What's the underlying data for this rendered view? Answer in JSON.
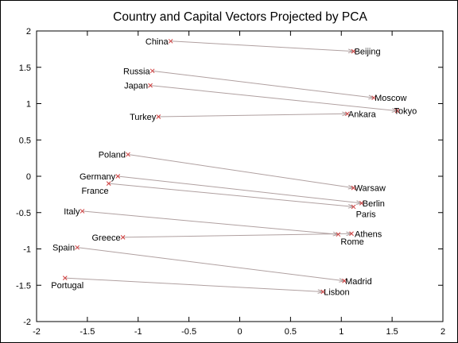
{
  "chart_data": {
    "type": "scatter",
    "title": "Country and Capital Vectors Projected by PCA",
    "xlabel": "",
    "ylabel": "",
    "xlim": [
      -2,
      2
    ],
    "ylim": [
      -2,
      2
    ],
    "x_ticks": [
      "-2",
      "-1.5",
      "-1",
      "-0.5",
      "0",
      "0.5",
      "1",
      "1.5",
      "2"
    ],
    "y_ticks": [
      "2",
      "1.5",
      "1",
      "0.5",
      "0",
      "-0.5",
      "-1",
      "-1.5",
      "-2"
    ],
    "grid": false,
    "arrow_color": "#b0a0a0",
    "marker_color": "#d04040",
    "pairs": [
      {
        "country": "China",
        "cx": -0.68,
        "cy": 1.86,
        "capital": "Beijing",
        "kx": 1.12,
        "ky": 1.72
      },
      {
        "country": "Russia",
        "cx": -0.86,
        "cy": 1.45,
        "capital": "Moscow",
        "kx": 1.32,
        "ky": 1.08
      },
      {
        "country": "Japan",
        "cx": -0.88,
        "cy": 1.25,
        "capital": "Tokyo",
        "kx": 1.55,
        "ky": 0.9
      },
      {
        "country": "Turkey",
        "cx": -0.8,
        "cy": 0.82,
        "capital": "Ankara",
        "kx": 1.06,
        "ky": 0.86
      },
      {
        "country": "Poland",
        "cx": -1.1,
        "cy": 0.3,
        "capital": "Warsaw",
        "kx": 1.12,
        "ky": -0.16
      },
      {
        "country": "Germany",
        "cx": -1.2,
        "cy": 0.0,
        "capital": "Berlin",
        "kx": 1.2,
        "ky": -0.37
      },
      {
        "country": "France",
        "cx": -1.29,
        "cy": -0.1,
        "capital": "Paris",
        "kx": 1.12,
        "ky": -0.42
      },
      {
        "country": "Italy",
        "cx": -1.55,
        "cy": -0.48,
        "capital": "Rome",
        "kx": 0.97,
        "ky": -0.8
      },
      {
        "country": "Greece",
        "cx": -1.15,
        "cy": -0.84,
        "capital": "Athens",
        "kx": 1.1,
        "ky": -0.79
      },
      {
        "country": "Spain",
        "cx": -1.6,
        "cy": -0.98,
        "capital": "Madrid",
        "kx": 1.03,
        "ky": -1.44
      },
      {
        "country": "Portugal",
        "cx": -1.72,
        "cy": -1.4,
        "capital": "Lisbon",
        "kx": 0.82,
        "ky": -1.59
      }
    ]
  }
}
